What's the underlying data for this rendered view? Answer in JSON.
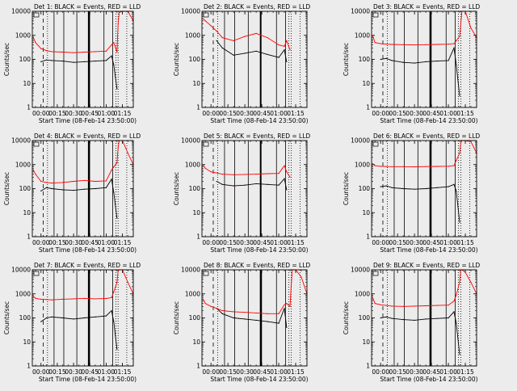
{
  "figure": {
    "y_ticks": [
      "1",
      "10",
      "100",
      "1000",
      "10000"
    ],
    "x_ticks": [
      "00:00",
      "00:15",
      "00:30",
      "00:45",
      "01:00",
      "01:15"
    ],
    "ylabel": "Counts/sec",
    "xlabel": "Start Time (08-Feb-14 23:50:00)",
    "legend_black": "BLACK = Events",
    "legend_red": "RED = LLD",
    "colors": {
      "events": "#000000",
      "lld": "#ff0000",
      "background": "#ececec"
    }
  },
  "chart_data": [
    {
      "type": "line",
      "title": "Det 1: BLACK = Events, RED = LLD",
      "xlabel": "Start Time (08-Feb-14 23:50:00)",
      "ylabel": "Counts/sec",
      "ylim": [
        1,
        10000
      ],
      "yscale": "log",
      "x": [
        -7,
        -5,
        0,
        5,
        10,
        20,
        30,
        40,
        50,
        60,
        65,
        67,
        70,
        71,
        72,
        75,
        80,
        85
      ],
      "series": [
        {
          "name": "Events",
          "values": [
            null,
            null,
            80,
            95,
            90,
            85,
            75,
            80,
            85,
            90,
            140,
            60,
            6,
            null,
            null,
            null,
            null,
            null
          ]
        },
        {
          "name": "LLD",
          "values": [
            800,
            500,
            280,
            230,
            210,
            200,
            190,
            200,
            210,
            220,
            400,
            500,
            200,
            3000,
            9000,
            10000,
            10000,
            4000
          ]
        }
      ],
      "vlines": [
        2,
        6,
        12,
        21,
        33,
        44,
        44.4,
        58,
        66,
        69,
        71,
        79
      ]
    },
    {
      "type": "line",
      "title": "Det 2: BLACK = Events, RED = LLD",
      "xlabel": "Start Time (08-Feb-14 23:50:00)",
      "ylabel": "Counts/sec",
      "ylim": [
        1,
        10000
      ],
      "yscale": "log",
      "x": [
        -7,
        -5,
        0,
        5,
        10,
        20,
        30,
        40,
        50,
        60,
        65,
        67,
        70,
        71,
        72,
        75,
        80,
        85
      ],
      "series": [
        {
          "name": "Events",
          "values": [
            null,
            null,
            null,
            600,
            300,
            150,
            180,
            220,
            160,
            120,
            250,
            80,
            null,
            null,
            null,
            null,
            null,
            null
          ]
        },
        {
          "name": "LLD",
          "values": [
            5000,
            4000,
            2500,
            1500,
            800,
            600,
            900,
            1200,
            800,
            400,
            350,
            600,
            250,
            null,
            null,
            null,
            null,
            null
          ]
        }
      ],
      "vlines": [
        2,
        6,
        12,
        21,
        33,
        44,
        58,
        66,
        69,
        71,
        79
      ]
    },
    {
      "type": "line",
      "title": "Det 3: BLACK = Events, RED = LLD",
      "xlabel": "Start Time (08-Feb-14 23:50:00)",
      "ylabel": "Counts/sec",
      "ylim": [
        1,
        10000
      ],
      "yscale": "log",
      "x": [
        -7,
        -5,
        0,
        5,
        10,
        20,
        30,
        40,
        50,
        60,
        65,
        67,
        70,
        71,
        72,
        75,
        80,
        85
      ],
      "series": [
        {
          "name": "Events",
          "values": [
            null,
            null,
            100,
            110,
            90,
            75,
            70,
            80,
            85,
            90,
            300,
            60,
            3,
            null,
            null,
            null,
            null,
            null
          ]
        },
        {
          "name": "LLD",
          "values": [
            1000,
            500,
            450,
            430,
            420,
            410,
            400,
            410,
            420,
            430,
            450,
            600,
            900,
            3000,
            10000,
            10000,
            2000,
            800
          ]
        }
      ],
      "vlines": [
        2,
        6,
        12,
        21,
        33,
        44,
        44.4,
        58,
        66,
        69,
        71,
        79
      ]
    },
    {
      "type": "line",
      "title": "Det 4: BLACK = Events, RED = LLD",
      "xlabel": "Start Time (08-Feb-14 23:50:00)",
      "ylabel": "Counts/sec",
      "ylim": [
        1,
        10000
      ],
      "yscale": "log",
      "x": [
        -7,
        -5,
        0,
        5,
        10,
        20,
        30,
        40,
        50,
        60,
        65,
        67,
        70,
        71,
        72,
        75,
        80,
        85
      ],
      "series": [
        {
          "name": "Events",
          "values": [
            null,
            null,
            80,
            110,
            100,
            90,
            85,
            95,
            100,
            110,
            250,
            70,
            6,
            null,
            null,
            null,
            null,
            null
          ]
        },
        {
          "name": "LLD",
          "values": [
            600,
            400,
            200,
            180,
            170,
            180,
            200,
            220,
            200,
            210,
            600,
            800,
            1200,
            5000,
            10000,
            10000,
            3000,
            1000
          ]
        }
      ],
      "vlines": [
        2,
        6,
        12,
        21,
        33,
        44,
        44.4,
        58,
        66,
        69,
        71,
        79
      ]
    },
    {
      "type": "line",
      "title": "Det 5: BLACK = Events, RED = LLD",
      "xlabel": "Start Time (08-Feb-14 23:50:00)",
      "ylabel": "Counts/sec",
      "ylim": [
        1,
        10000
      ],
      "yscale": "log",
      "x": [
        -7,
        -5,
        0,
        5,
        10,
        20,
        30,
        40,
        50,
        60,
        65,
        67,
        70,
        71,
        72,
        75,
        80,
        85
      ],
      "series": [
        {
          "name": "Events",
          "values": [
            null,
            null,
            null,
            200,
            150,
            130,
            140,
            160,
            150,
            140,
            260,
            90,
            null,
            null,
            null,
            null,
            null,
            null
          ]
        },
        {
          "name": "LLD",
          "values": [
            1000,
            700,
            500,
            450,
            400,
            380,
            390,
            400,
            420,
            430,
            900,
            500,
            300,
            null,
            null,
            null,
            null,
            null
          ]
        }
      ],
      "vlines": [
        2,
        6,
        12,
        21,
        33,
        44,
        58,
        66,
        69,
        71,
        79
      ]
    },
    {
      "type": "line",
      "title": "Det 6: BLACK = Events, RED = LLD",
      "xlabel": "Start Time (08-Feb-14 23:50:00)",
      "ylabel": "Counts/sec",
      "ylim": [
        1,
        10000
      ],
      "yscale": "log",
      "x": [
        -7,
        -5,
        0,
        5,
        10,
        20,
        30,
        40,
        50,
        60,
        65,
        67,
        70,
        71,
        72,
        75,
        80,
        85
      ],
      "series": [
        {
          "name": "Events",
          "values": [
            null,
            null,
            120,
            130,
            110,
            100,
            95,
            100,
            110,
            120,
            150,
            80,
            4,
            null,
            null,
            null,
            null,
            null
          ]
        },
        {
          "name": "LLD",
          "values": [
            1100,
            900,
            850,
            830,
            820,
            820,
            810,
            830,
            840,
            850,
            900,
            1500,
            3000,
            8000,
            10000,
            10000,
            9000,
            3000
          ]
        }
      ],
      "vlines": [
        2,
        6,
        12,
        21,
        33,
        44,
        44.4,
        58,
        66,
        69,
        71,
        79
      ]
    },
    {
      "type": "line",
      "title": "Det 7: BLACK = Events, RED = LLD",
      "xlabel": "Start Time (08-Feb-14 23:50:00)",
      "ylabel": "Counts/sec",
      "ylim": [
        1,
        10000
      ],
      "yscale": "log",
      "x": [
        -7,
        -5,
        0,
        5,
        10,
        20,
        30,
        40,
        50,
        60,
        65,
        67,
        70,
        71,
        72,
        75,
        80,
        85
      ],
      "series": [
        {
          "name": "Events",
          "values": [
            null,
            null,
            70,
            100,
            110,
            100,
            90,
            100,
            110,
            120,
            200,
            70,
            5,
            null,
            null,
            null,
            null,
            null
          ]
        },
        {
          "name": "LLD",
          "values": [
            800,
            650,
            600,
            580,
            560,
            600,
            620,
            650,
            620,
            640,
            700,
            1200,
            3000,
            9000,
            10000,
            10000,
            3000,
            1000
          ]
        }
      ],
      "vlines": [
        2,
        6,
        12,
        21,
        33,
        44,
        44.4,
        58,
        66,
        69,
        71,
        79
      ]
    },
    {
      "type": "line",
      "title": "Det 8: BLACK = Events, RED = LLD",
      "xlabel": "Start Time (08-Feb-14 23:50:00)",
      "ylabel": "Counts/sec",
      "ylim": [
        1,
        10000
      ],
      "yscale": "log",
      "x": [
        -7,
        -5,
        0,
        5,
        10,
        20,
        30,
        40,
        50,
        60,
        65,
        67,
        70,
        71,
        72,
        75,
        80,
        85
      ],
      "series": [
        {
          "name": "Events",
          "values": [
            null,
            null,
            null,
            250,
            150,
            100,
            90,
            80,
            70,
            60,
            250,
            40,
            null,
            null,
            null,
            null,
            null,
            null
          ]
        },
        {
          "name": "LLD",
          "values": [
            600,
            400,
            300,
            250,
            200,
            180,
            170,
            160,
            150,
            150,
            350,
            400,
            300,
            2000,
            10000,
            10000,
            5000,
            1000
          ]
        }
      ],
      "vlines": [
        2,
        6,
        12,
        21,
        33,
        44,
        44.4,
        58,
        66,
        69,
        71,
        79
      ]
    },
    {
      "type": "line",
      "title": "Det 9: BLACK = Events, RED = LLD",
      "xlabel": "Start Time (08-Feb-14 23:50:00)",
      "ylabel": "Counts/sec",
      "ylim": [
        1,
        10000
      ],
      "yscale": "log",
      "x": [
        -7,
        -5,
        0,
        5,
        10,
        20,
        30,
        40,
        50,
        60,
        65,
        67,
        70,
        71,
        72,
        75,
        80,
        85
      ],
      "series": [
        {
          "name": "Events",
          "values": [
            null,
            null,
            100,
            110,
            95,
            85,
            80,
            90,
            95,
            100,
            180,
            60,
            3,
            null,
            null,
            null,
            null,
            null
          ]
        },
        {
          "name": "LLD",
          "values": [
            700,
            400,
            350,
            330,
            310,
            300,
            310,
            320,
            330,
            340,
            500,
            900,
            3000,
            10000,
            10000,
            8000,
            3000,
            1000
          ]
        }
      ],
      "vlines": [
        2,
        6,
        12,
        21,
        33,
        44,
        44.4,
        58,
        66,
        69,
        71,
        79
      ]
    }
  ]
}
